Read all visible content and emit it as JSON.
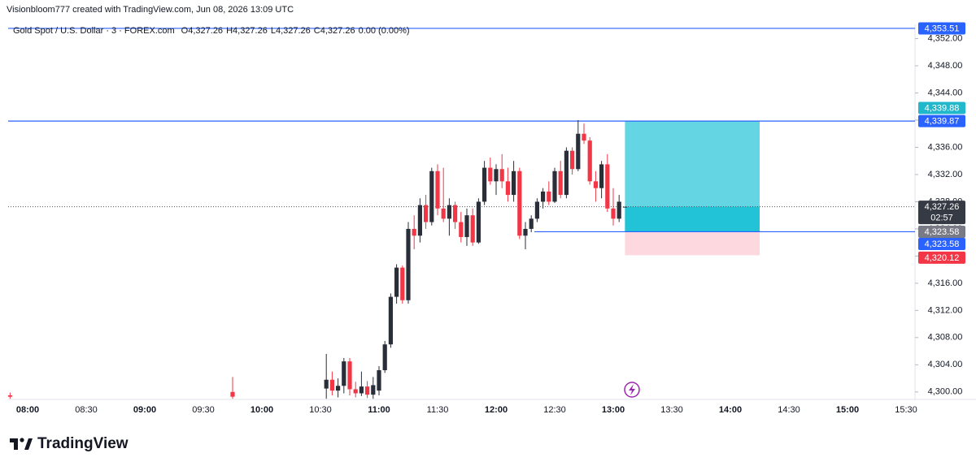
{
  "header": "Visionbloom777 created with TradingView.com, Jun 08, 2026 13:09 UTC",
  "chart_data": {
    "type": "candlestick",
    "symbol": "Gold Spot / U.S. Dollar · 3 · FOREX.com",
    "ohlc_legend": [
      {
        "key": "O",
        "text": "4,327.26"
      },
      {
        "key": "H",
        "text": "4,327.26"
      },
      {
        "key": "L",
        "text": "4,327.26"
      },
      {
        "key": "C",
        "text": "4,327.26"
      },
      {
        "key": "",
        "text": "0.00 (0.00%)"
      }
    ],
    "up_color": "#2a2e39",
    "down_color": "#f23645",
    "x": [
      "07:51",
      "09:45",
      "10:33",
      "10:36",
      "10:39",
      "10:42",
      "10:45",
      "10:48",
      "10:51",
      "10:54",
      "10:57",
      "11:00",
      "11:03",
      "11:06",
      "11:09",
      "11:12",
      "11:15",
      "11:18",
      "11:21",
      "11:24",
      "11:27",
      "11:30",
      "11:33",
      "11:36",
      "11:39",
      "11:42",
      "11:45",
      "11:48",
      "11:51",
      "11:54",
      "11:57",
      "12:00",
      "12:03",
      "12:06",
      "12:09",
      "12:12",
      "12:15",
      "12:18",
      "12:21",
      "12:24",
      "12:27",
      "12:30",
      "12:33",
      "12:36",
      "12:39",
      "12:42",
      "12:45",
      "12:48",
      "12:51",
      "12:54",
      "12:57",
      "13:00",
      "13:03",
      "13:06"
    ],
    "open": [
      4299.5,
      4300,
      4300.5,
      4301.8,
      4300.2,
      4300.9,
      4304.5,
      4300.4,
      4299.8,
      4300.8,
      4299.6,
      4300.2,
      4303.2,
      4307,
      4314,
      4318.3,
      4313.5,
      4324,
      4323,
      4327.5,
      4325,
      4332.5,
      4327,
      4325.5,
      4327.5,
      4325,
      4322.8,
      4326,
      4322,
      4328,
      4333,
      4331,
      4332.8,
      4331,
      4329,
      4332.5,
      4323,
      4324,
      4325.5,
      4328,
      4329.5,
      4328,
      4332.5,
      4329,
      4335.5,
      4332.8,
      4338,
      4337,
      4331,
      4330,
      4333.5,
      4327,
      4325.5,
      4327.26
    ],
    "high": [
      4299.9,
      4302.2,
      4305.6,
      4303,
      4302,
      4305,
      4305,
      4301.5,
      4303,
      4301.6,
      4302.2,
      4303.8,
      4307.5,
      4314.5,
      4318.8,
      4318.6,
      4325,
      4326,
      4328.5,
      4329,
      4333,
      4333.5,
      4333,
      4328.5,
      4328,
      4326.5,
      4327,
      4327,
      4328.5,
      4334,
      4334.5,
      4333.5,
      4335,
      4333,
      4334,
      4333,
      4325,
      4326,
      4328.5,
      4330,
      4331,
      4333,
      4334,
      4336,
      4336,
      4340,
      4339.5,
      4337.5,
      4332.5,
      4334,
      4335,
      4330,
      4329,
      4327.26
    ],
    "low": [
      4299,
      4299,
      4299,
      4299.5,
      4299.2,
      4299.8,
      4299.5,
      4299.2,
      4299.4,
      4299.1,
      4299,
      4299.5,
      4302.8,
      4306.5,
      4313,
      4313,
      4313,
      4321,
      4322,
      4324,
      4324.5,
      4326,
      4325,
      4323,
      4324,
      4322,
      4321.5,
      4321.5,
      4321.8,
      4327.5,
      4330.5,
      4329,
      4330,
      4328,
      4328,
      4322.5,
      4321,
      4323.5,
      4325,
      4327,
      4327.5,
      4327.8,
      4328.5,
      4328.5,
      4332,
      4332.5,
      4336.5,
      4330.5,
      4328,
      4328.5,
      4326.5,
      4324.5,
      4325,
      4327.26
    ],
    "close": [
      4299.3,
      4299.3,
      4301.8,
      4300.2,
      4300.9,
      4304.5,
      4300.4,
      4299.8,
      4300.8,
      4299.6,
      4301,
      4303.2,
      4307,
      4314,
      4318.3,
      4313.5,
      4324,
      4323,
      4327.5,
      4325,
      4332.5,
      4327,
      4325.5,
      4327.5,
      4325,
      4322.8,
      4326,
      4322,
      4328,
      4333,
      4331,
      4332.8,
      4331,
      4329,
      4332.5,
      4323,
      4324,
      4325.5,
      4328,
      4329.5,
      4328,
      4332.5,
      4329,
      4335.5,
      4332.8,
      4338,
      4337,
      4331,
      4330,
      4333.5,
      4327,
      4325.5,
      4328,
      4327.26
    ],
    "ylim": [
      4298.9,
      4354.1
    ],
    "yticks": [
      {
        "value": 4300,
        "label": "4,300.00"
      },
      {
        "value": 4304,
        "label": "4,304.00"
      },
      {
        "value": 4308,
        "label": "4,308.00"
      },
      {
        "value": 4312,
        "label": "4,312.00"
      },
      {
        "value": 4316,
        "label": "4,316.00"
      },
      {
        "value": 4320,
        "label": "4,320.00"
      },
      {
        "value": 4324,
        "label": "4,324.00"
      },
      {
        "value": 4328,
        "label": "4,328.00"
      },
      {
        "value": 4332,
        "label": "4,332.00"
      },
      {
        "value": 4336,
        "label": "4,336.00"
      },
      {
        "value": 4340,
        "label": "4,340.00"
      },
      {
        "value": 4344,
        "label": "4,344.00"
      },
      {
        "value": 4348,
        "label": "4,348.00"
      },
      {
        "value": 4352,
        "label": "4,352.00"
      }
    ],
    "xticks": [
      "08:00",
      "08:30",
      "09:00",
      "09:30",
      "10:00",
      "10:30",
      "11:00",
      "11:30",
      "12:00",
      "12:30",
      "13:00",
      "13:30",
      "14:00",
      "14:30",
      "15:00",
      "15:30"
    ],
    "current_price": {
      "value": 4327.26,
      "label": "4,327.26",
      "countdown": "02:57"
    },
    "lines": [
      {
        "value": 4353.51,
        "label": "4,353.51"
      },
      {
        "value": 4339.87,
        "label": "4,339.87"
      },
      {
        "value": 4323.58,
        "label": "4,323.58"
      }
    ],
    "line_color": "#2962ff",
    "position": {
      "start": "13:06",
      "end": "14:15",
      "target": {
        "value": 4339.88,
        "label": "4,339.88"
      },
      "entry": {
        "value": 4323.58,
        "label": "4,323.58"
      },
      "stop": {
        "value": 4320.12,
        "label": "4,320.12"
      }
    }
  },
  "footer": "TradingView"
}
